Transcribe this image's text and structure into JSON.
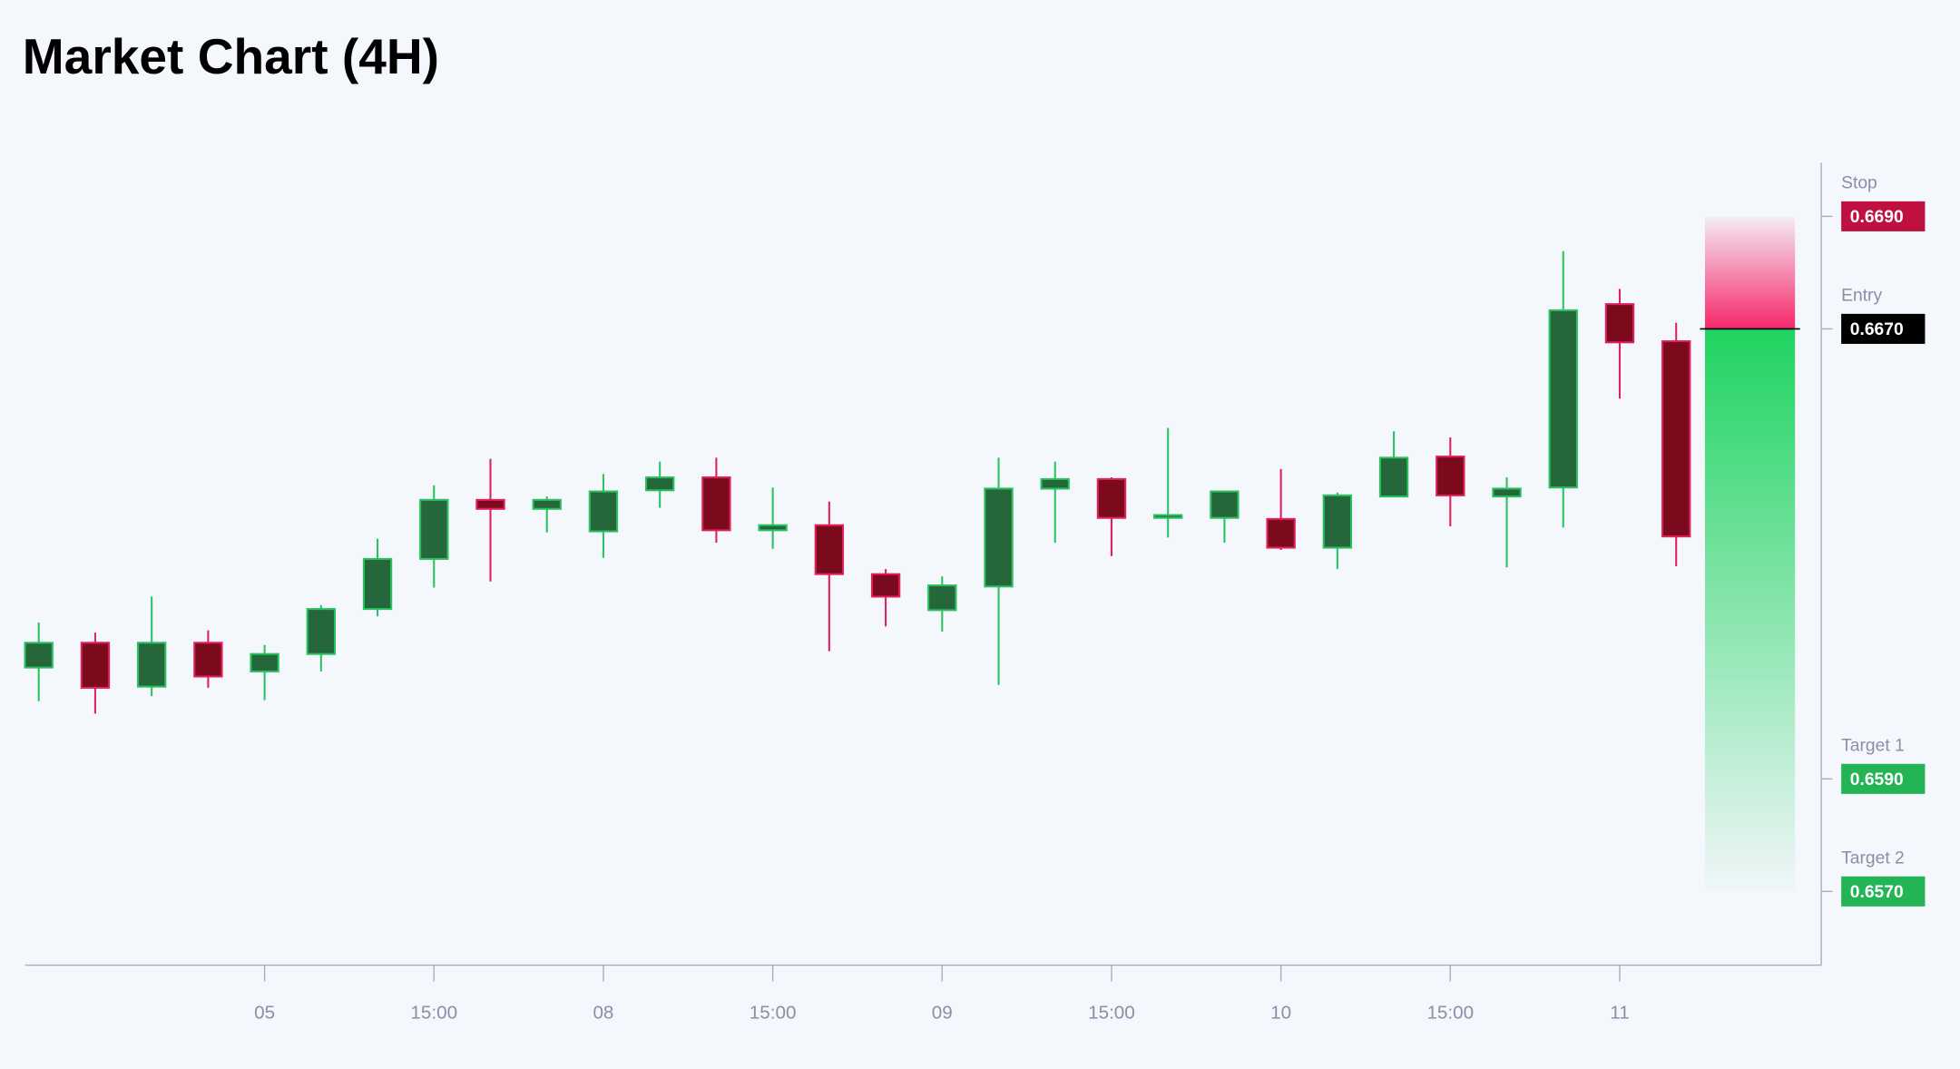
{
  "chart_data": {
    "type": "candlestick",
    "title": "Market Chart (4H)",
    "categories": [
      null,
      null,
      null,
      null,
      "05",
      null,
      null,
      "15:00",
      null,
      null,
      "08",
      null,
      null,
      "15:00",
      null,
      null,
      "09",
      null,
      null,
      "15:00",
      null,
      null,
      "10",
      null,
      null,
      "15:00",
      null,
      null,
      "11",
      null
    ],
    "open": [
      0.66098,
      0.66142,
      0.66064,
      0.66142,
      0.66091,
      0.66122,
      0.66202,
      0.66291,
      0.66396,
      0.6638,
      0.6634,
      0.66413,
      0.66436,
      0.66342,
      0.66351,
      0.66264,
      0.662,
      0.66242,
      0.66416,
      0.66433,
      0.66364,
      0.66364,
      0.66362,
      0.66311,
      0.66402,
      0.66473,
      0.66402,
      0.66418,
      0.66744,
      0.66678
    ],
    "high": [
      0.66178,
      0.6616,
      0.66224,
      0.66164,
      0.66138,
      0.66209,
      0.66327,
      0.66422,
      0.66469,
      0.66402,
      0.66442,
      0.66464,
      0.66471,
      0.66418,
      0.66393,
      0.66273,
      0.6626,
      0.66471,
      0.66464,
      0.66436,
      0.66524,
      0.66411,
      0.66451,
      0.66409,
      0.66518,
      0.66507,
      0.66436,
      0.66838,
      0.66771,
      0.66711
    ],
    "low": [
      0.66038,
      0.66016,
      0.66047,
      0.66062,
      0.6604,
      0.66091,
      0.66189,
      0.6624,
      0.66251,
      0.66338,
      0.66293,
      0.66382,
      0.6632,
      0.66309,
      0.66127,
      0.66171,
      0.66162,
      0.66067,
      0.6632,
      0.66296,
      0.66329,
      0.6632,
      0.66307,
      0.66273,
      0.66402,
      0.66349,
      0.66276,
      0.66347,
      0.66576,
      0.66278
    ],
    "close": [
      0.66142,
      0.66062,
      0.66142,
      0.66082,
      0.66122,
      0.66202,
      0.66291,
      0.66396,
      0.6638,
      0.66396,
      0.66411,
      0.66436,
      0.66342,
      0.66351,
      0.66264,
      0.66224,
      0.66244,
      0.66416,
      0.66433,
      0.66364,
      0.66369,
      0.66411,
      0.66311,
      0.66404,
      0.66471,
      0.66404,
      0.66416,
      0.66733,
      0.66676,
      0.66331
    ],
    "up_color": "#2bc161",
    "down_color": "#e0215a",
    "ylim": [
      0.6557,
      0.67
    ],
    "levels": [
      {
        "name": "Stop",
        "value": 0.669,
        "value_label": "0.6690",
        "color": "#c0103f"
      },
      {
        "name": "Entry",
        "value": 0.667,
        "value_label": "0.6670",
        "color": "#000000"
      },
      {
        "name": "Target 1",
        "value": 0.659,
        "value_label": "0.6590",
        "color": "#22b455"
      },
      {
        "name": "Target 2",
        "value": 0.657,
        "value_label": "0.6570",
        "color": "#22b455"
      }
    ]
  }
}
